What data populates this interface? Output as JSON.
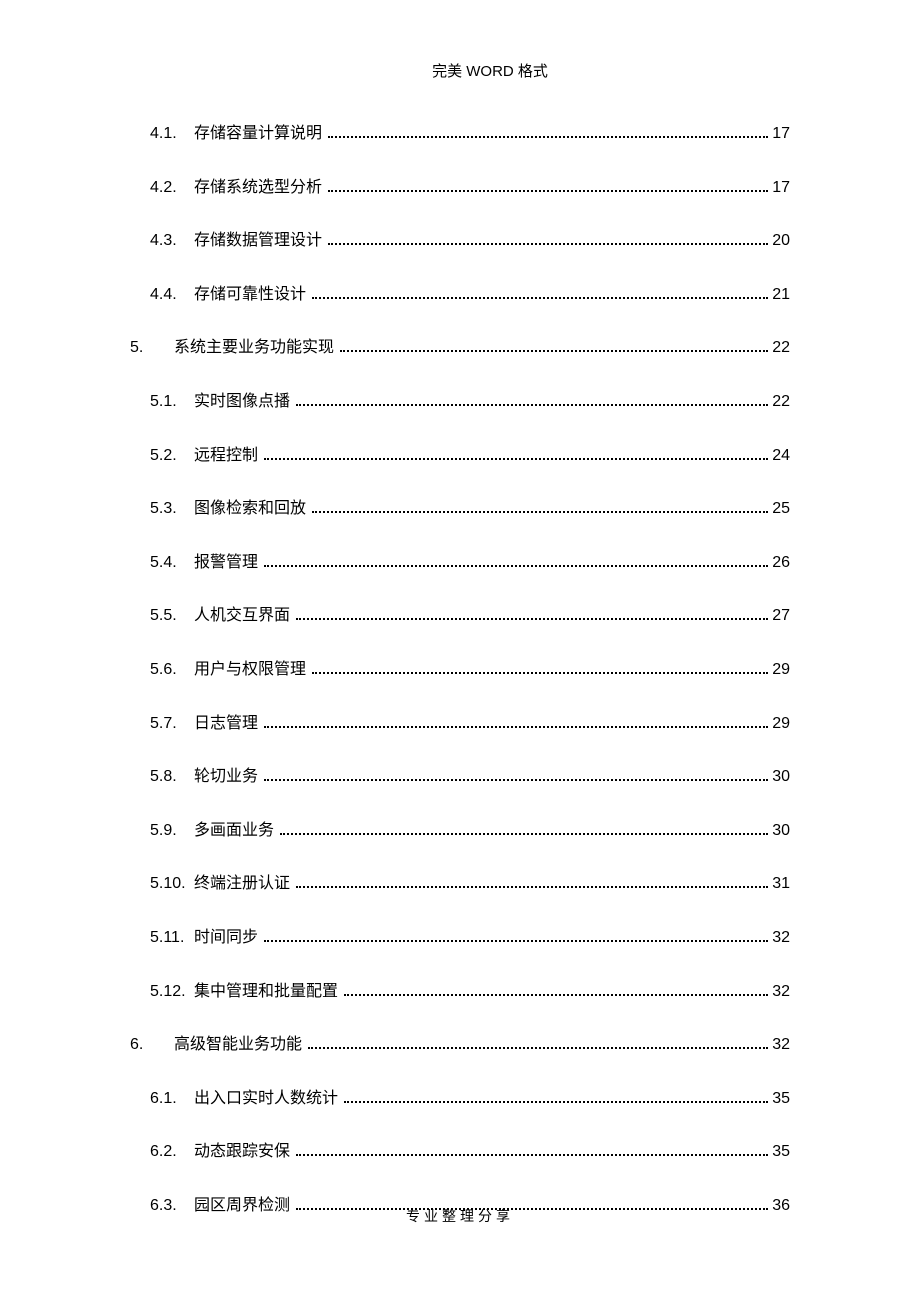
{
  "header": "完美 WORD 格式",
  "footer": "专业整理分享",
  "toc_entries": [
    {
      "level": 2,
      "num": "4.1.",
      "title": "存储容量计算说明",
      "page": "17"
    },
    {
      "level": 2,
      "num": "4.2.",
      "title": "存储系统选型分析",
      "page": "17"
    },
    {
      "level": 2,
      "num": "4.3.",
      "title": "存储数据管理设计",
      "page": "20"
    },
    {
      "level": 2,
      "num": "4.4.",
      "title": "存储可靠性设计",
      "page": "21"
    },
    {
      "level": 1,
      "num": "5.",
      "title": "系统主要业务功能实现",
      "page": "22"
    },
    {
      "level": 2,
      "num": "5.1.",
      "title": "实时图像点播",
      "page": "22"
    },
    {
      "level": 2,
      "num": "5.2.",
      "title": "远程控制",
      "page": "24"
    },
    {
      "level": 2,
      "num": "5.3.",
      "title": "图像检索和回放",
      "page": "25"
    },
    {
      "level": 2,
      "num": "5.4.",
      "title": "报警管理",
      "page": "26"
    },
    {
      "level": 2,
      "num": "5.5.",
      "title": "人机交互界面",
      "page": "27"
    },
    {
      "level": 2,
      "num": "5.6.",
      "title": "用户与权限管理",
      "page": "29"
    },
    {
      "level": 2,
      "num": "5.7.",
      "title": "日志管理",
      "page": "29"
    },
    {
      "level": 2,
      "num": "5.8.",
      "title": "轮切业务",
      "page": "30"
    },
    {
      "level": 2,
      "num": "5.9.",
      "title": "多画面业务",
      "page": "30"
    },
    {
      "level": 2,
      "num": "5.10.",
      "title": "终端注册认证",
      "page": "31"
    },
    {
      "level": 2,
      "num": "5.11.",
      "title": "时间同步",
      "page": "32"
    },
    {
      "level": 2,
      "num": "5.12.",
      "title": "集中管理和批量配置",
      "page": "32"
    },
    {
      "level": 1,
      "num": "6.",
      "title": "高级智能业务功能",
      "page": "32"
    },
    {
      "level": 2,
      "num": "6.1.",
      "title": "出入口实时人数统计",
      "page": "35"
    },
    {
      "level": 2,
      "num": "6.2.",
      "title": "动态跟踪安保",
      "page": "35"
    },
    {
      "level": 2,
      "num": "6.3.",
      "title": "园区周界检测",
      "page": "36"
    }
  ]
}
